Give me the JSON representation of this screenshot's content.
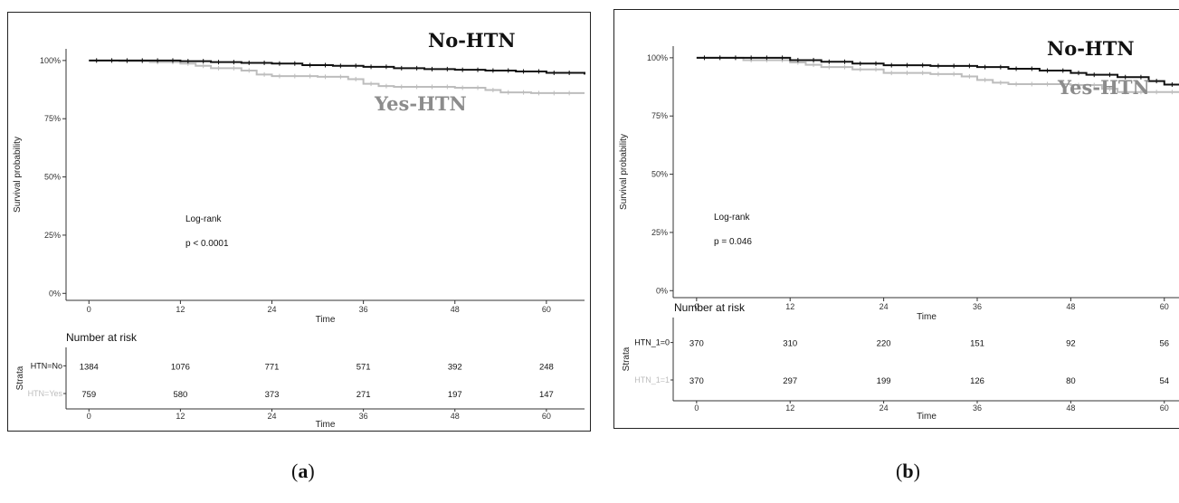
{
  "chart_data": [
    {
      "panel": "a",
      "type": "line",
      "ylabel": "Survival probability",
      "xlabel": "Time",
      "y_ticks": [
        "0%",
        "25%",
        "50%",
        "75%",
        "100%"
      ],
      "x_ticks": [
        0,
        12,
        24,
        36,
        48,
        60
      ],
      "xlim": [
        -3,
        65
      ],
      "ylim": [
        -0.03,
        1.05
      ],
      "log_rank_label": "Log-rank",
      "p_value": "p < 0.0001",
      "series": [
        {
          "name": "No-HTN",
          "color": "#111111",
          "x": [
            0,
            4,
            8,
            12,
            16,
            20,
            24,
            28,
            32,
            36,
            40,
            44,
            48,
            52,
            56,
            60,
            65
          ],
          "y": [
            1.0,
            1.0,
            1.0,
            0.997,
            0.993,
            0.99,
            0.987,
            0.98,
            0.977,
            0.973,
            0.967,
            0.963,
            0.96,
            0.957,
            0.953,
            0.947,
            0.94
          ]
        },
        {
          "name": "Yes-HTN",
          "color": "#bdbdbd",
          "x": [
            0,
            4,
            8,
            12,
            14,
            16,
            20,
            22,
            24,
            30,
            34,
            36,
            38,
            40,
            48,
            52,
            54,
            58,
            65
          ],
          "y": [
            1.0,
            0.997,
            0.993,
            0.987,
            0.977,
            0.967,
            0.957,
            0.94,
            0.933,
            0.93,
            0.92,
            0.9,
            0.89,
            0.887,
            0.883,
            0.873,
            0.863,
            0.86,
            0.86
          ]
        }
      ],
      "risk_table": {
        "title": "Number at risk",
        "strata_label": "Strata",
        "xlabel": "Time",
        "x_ticks": [
          0,
          12,
          24,
          36,
          48,
          60
        ],
        "rows": [
          {
            "label": "HTN=No",
            "color": "#111111",
            "values": [
              1384,
              1076,
              771,
              571,
              392,
              248
            ]
          },
          {
            "label": "HTN=Yes",
            "color": "#bdbdbd",
            "values": [
              759,
              580,
              373,
              271,
              197,
              147
            ]
          }
        ]
      }
    },
    {
      "panel": "b",
      "type": "line",
      "ylabel": "Survival probability",
      "xlabel": "Time",
      "y_ticks": [
        "0%",
        "25%",
        "50%",
        "75%",
        "100%"
      ],
      "x_ticks": [
        0,
        12,
        24,
        36,
        48,
        60
      ],
      "xlim": [
        -3,
        62
      ],
      "ylim": [
        -0.03,
        1.05
      ],
      "log_rank_label": "Log-rank",
      "p_value": "p = 0.046",
      "series": [
        {
          "name": "No-HTN",
          "color": "#111111",
          "x": [
            0,
            6,
            12,
            16,
            20,
            24,
            30,
            36,
            40,
            44,
            48,
            50,
            54,
            58,
            60,
            62
          ],
          "y": [
            1.0,
            1.0,
            0.99,
            0.983,
            0.975,
            0.968,
            0.965,
            0.96,
            0.953,
            0.945,
            0.935,
            0.927,
            0.917,
            0.9,
            0.885,
            0.88
          ]
        },
        {
          "name": "Yes-HTN",
          "color": "#bdbdbd",
          "x": [
            0,
            6,
            12,
            14,
            16,
            20,
            24,
            30,
            34,
            36,
            38,
            40,
            48,
            52,
            54,
            62
          ],
          "y": [
            1.0,
            0.99,
            0.98,
            0.97,
            0.96,
            0.95,
            0.935,
            0.93,
            0.92,
            0.905,
            0.893,
            0.887,
            0.883,
            0.867,
            0.853,
            0.853
          ]
        }
      ],
      "risk_table": {
        "title": "Number at risk",
        "strata_label": "Strata",
        "xlabel": "Time",
        "x_ticks": [
          0,
          12,
          24,
          36,
          48,
          60
        ],
        "rows": [
          {
            "label": "HTN_1=0",
            "color": "#111111",
            "values": [
              370,
              310,
              220,
              151,
              92,
              56
            ]
          },
          {
            "label": "HTN_1=1",
            "color": "#bdbdbd",
            "values": [
              370,
              297,
              199,
              126,
              80,
              54
            ]
          }
        ]
      }
    }
  ],
  "captions": {
    "a": "a",
    "b": "b"
  }
}
